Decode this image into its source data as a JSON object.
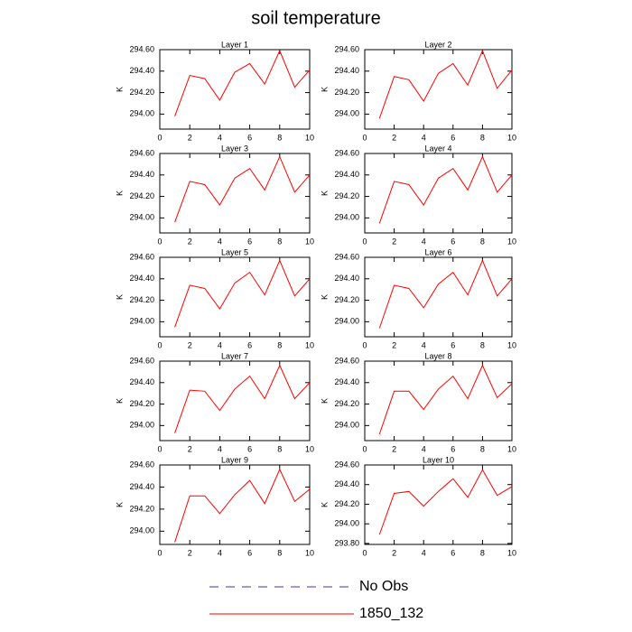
{
  "title": "soil temperature",
  "legend": [
    {
      "name": "No Obs",
      "color": "#3a3aa0",
      "dash": true
    },
    {
      "name": "1850_132",
      "color": "#ff0000",
      "dash": false
    }
  ],
  "chart_data": [
    {
      "type": "line",
      "title": "Layer 1",
      "y_label": "K",
      "x": [
        1,
        2,
        3,
        4,
        5,
        6,
        7,
        8,
        9,
        10
      ],
      "xlim": [
        0,
        10
      ],
      "xticks": [
        0,
        2,
        4,
        6,
        8,
        10
      ],
      "ylim": [
        293.86,
        294.6
      ],
      "yticks": [
        {
          "value": 294.0,
          "label": "294.00"
        },
        {
          "value": 294.2,
          "label": "294.20"
        },
        {
          "value": 294.4,
          "label": "294.40"
        },
        {
          "value": 294.6,
          "label": "294.60"
        }
      ],
      "series": [
        {
          "color": "#ff0000",
          "values": [
            293.98,
            294.36,
            294.33,
            294.13,
            294.39,
            294.47,
            294.28,
            294.59,
            294.25,
            294.41
          ]
        }
      ]
    },
    {
      "type": "line",
      "title": "Layer 2",
      "y_label": "K",
      "x": [
        1,
        2,
        3,
        4,
        5,
        6,
        7,
        8,
        9,
        10
      ],
      "xlim": [
        0,
        10
      ],
      "xticks": [
        0,
        2,
        4,
        6,
        8,
        10
      ],
      "ylim": [
        293.86,
        294.6
      ],
      "yticks": [
        {
          "value": 294.0,
          "label": "294.00"
        },
        {
          "value": 294.2,
          "label": "294.20"
        },
        {
          "value": 294.4,
          "label": "294.40"
        },
        {
          "value": 294.6,
          "label": "294.60"
        }
      ],
      "series": [
        {
          "color": "#ff0000",
          "values": [
            293.96,
            294.35,
            294.32,
            294.12,
            294.38,
            294.47,
            294.27,
            294.59,
            294.24,
            294.41
          ]
        }
      ]
    },
    {
      "type": "line",
      "title": "Layer 3",
      "y_label": "K",
      "x": [
        1,
        2,
        3,
        4,
        5,
        6,
        7,
        8,
        9,
        10
      ],
      "xlim": [
        0,
        10
      ],
      "xticks": [
        0,
        2,
        4,
        6,
        8,
        10
      ],
      "ylim": [
        293.86,
        294.6
      ],
      "yticks": [
        {
          "value": 294.0,
          "label": "294.00"
        },
        {
          "value": 294.2,
          "label": "294.20"
        },
        {
          "value": 294.4,
          "label": "294.40"
        },
        {
          "value": 294.6,
          "label": "294.60"
        }
      ],
      "series": [
        {
          "color": "#ff0000",
          "values": [
            293.96,
            294.34,
            294.31,
            294.12,
            294.37,
            294.46,
            294.26,
            294.57,
            294.24,
            294.4
          ]
        }
      ]
    },
    {
      "type": "line",
      "title": "Layer 4",
      "y_label": "K",
      "x": [
        1,
        2,
        3,
        4,
        5,
        6,
        7,
        8,
        9,
        10
      ],
      "xlim": [
        0,
        10
      ],
      "xticks": [
        0,
        2,
        4,
        6,
        8,
        10
      ],
      "ylim": [
        293.86,
        294.6
      ],
      "yticks": [
        {
          "value": 294.0,
          "label": "294.00"
        },
        {
          "value": 294.2,
          "label": "294.20"
        },
        {
          "value": 294.4,
          "label": "294.40"
        },
        {
          "value": 294.6,
          "label": "294.60"
        }
      ],
      "series": [
        {
          "color": "#ff0000",
          "values": [
            293.95,
            294.34,
            294.31,
            294.12,
            294.37,
            294.46,
            294.26,
            294.57,
            294.24,
            294.4
          ]
        }
      ]
    },
    {
      "type": "line",
      "title": "Layer 5",
      "y_label": "K",
      "x": [
        1,
        2,
        3,
        4,
        5,
        6,
        7,
        8,
        9,
        10
      ],
      "xlim": [
        0,
        10
      ],
      "xticks": [
        0,
        2,
        4,
        6,
        8,
        10
      ],
      "ylim": [
        293.86,
        294.6
      ],
      "yticks": [
        {
          "value": 294.0,
          "label": "294.00"
        },
        {
          "value": 294.2,
          "label": "294.20"
        },
        {
          "value": 294.4,
          "label": "294.40"
        },
        {
          "value": 294.6,
          "label": "294.60"
        }
      ],
      "series": [
        {
          "color": "#ff0000",
          "values": [
            293.95,
            294.34,
            294.31,
            294.12,
            294.36,
            294.46,
            294.25,
            294.57,
            294.24,
            294.4
          ]
        }
      ]
    },
    {
      "type": "line",
      "title": "Layer 6",
      "y_label": "K",
      "x": [
        1,
        2,
        3,
        4,
        5,
        6,
        7,
        8,
        9,
        10
      ],
      "xlim": [
        0,
        10
      ],
      "xticks": [
        0,
        2,
        4,
        6,
        8,
        10
      ],
      "ylim": [
        293.86,
        294.6
      ],
      "yticks": [
        {
          "value": 294.0,
          "label": "294.00"
        },
        {
          "value": 294.2,
          "label": "294.20"
        },
        {
          "value": 294.4,
          "label": "294.40"
        },
        {
          "value": 294.6,
          "label": "294.60"
        }
      ],
      "series": [
        {
          "color": "#ff0000",
          "values": [
            293.94,
            294.34,
            294.31,
            294.13,
            294.35,
            294.46,
            294.25,
            294.57,
            294.24,
            294.4
          ]
        }
      ]
    },
    {
      "type": "line",
      "title": "Layer 7",
      "y_label": "K",
      "x": [
        1,
        2,
        3,
        4,
        5,
        6,
        7,
        8,
        9,
        10
      ],
      "xlim": [
        0,
        10
      ],
      "xticks": [
        0,
        2,
        4,
        6,
        8,
        10
      ],
      "ylim": [
        293.86,
        294.6
      ],
      "yticks": [
        {
          "value": 294.0,
          "label": "294.00"
        },
        {
          "value": 294.2,
          "label": "294.20"
        },
        {
          "value": 294.4,
          "label": "294.40"
        },
        {
          "value": 294.6,
          "label": "294.60"
        }
      ],
      "series": [
        {
          "color": "#ff0000",
          "values": [
            293.93,
            294.33,
            294.32,
            294.14,
            294.34,
            294.46,
            294.25,
            294.56,
            294.25,
            294.4
          ]
        }
      ]
    },
    {
      "type": "line",
      "title": "Layer 8",
      "y_label": "K",
      "x": [
        1,
        2,
        3,
        4,
        5,
        6,
        7,
        8,
        9,
        10
      ],
      "xlim": [
        0,
        10
      ],
      "xticks": [
        0,
        2,
        4,
        6,
        8,
        10
      ],
      "ylim": [
        293.86,
        294.6
      ],
      "yticks": [
        {
          "value": 294.0,
          "label": "294.00"
        },
        {
          "value": 294.2,
          "label": "294.20"
        },
        {
          "value": 294.4,
          "label": "294.40"
        },
        {
          "value": 294.6,
          "label": "294.60"
        }
      ],
      "series": [
        {
          "color": "#ff0000",
          "values": [
            293.92,
            294.32,
            294.32,
            294.15,
            294.34,
            294.46,
            294.25,
            294.56,
            294.26,
            294.39
          ]
        }
      ]
    },
    {
      "type": "line",
      "title": "Layer 9",
      "y_label": "K",
      "x": [
        1,
        2,
        3,
        4,
        5,
        6,
        7,
        8,
        9,
        10
      ],
      "xlim": [
        0,
        10
      ],
      "xticks": [
        0,
        2,
        4,
        6,
        8,
        10
      ],
      "ylim": [
        293.88,
        294.6
      ],
      "yticks": [
        {
          "value": 294.0,
          "label": "294.00"
        },
        {
          "value": 294.2,
          "label": "294.20"
        },
        {
          "value": 294.4,
          "label": "294.40"
        },
        {
          "value": 294.6,
          "label": "294.60"
        }
      ],
      "series": [
        {
          "color": "#ff0000",
          "values": [
            293.9,
            294.32,
            294.32,
            294.16,
            294.33,
            294.46,
            294.25,
            294.56,
            294.27,
            294.38
          ]
        }
      ]
    },
    {
      "type": "line",
      "title": "Layer 10",
      "y_label": "K",
      "x": [
        1,
        2,
        3,
        4,
        5,
        6,
        7,
        8,
        9,
        10
      ],
      "xlim": [
        0,
        10
      ],
      "xticks": [
        0,
        2,
        4,
        6,
        8,
        10
      ],
      "ylim": [
        293.79,
        294.6
      ],
      "yticks": [
        {
          "value": 293.8,
          "label": "293.80"
        },
        {
          "value": 294.0,
          "label": "294.00"
        },
        {
          "value": 294.2,
          "label": "294.20"
        },
        {
          "value": 294.4,
          "label": "294.40"
        },
        {
          "value": 294.6,
          "label": "294.60"
        }
      ],
      "series": [
        {
          "color": "#ff0000",
          "values": [
            293.89,
            294.31,
            294.33,
            294.18,
            294.33,
            294.46,
            294.27,
            294.55,
            294.29,
            294.38
          ]
        }
      ]
    }
  ]
}
